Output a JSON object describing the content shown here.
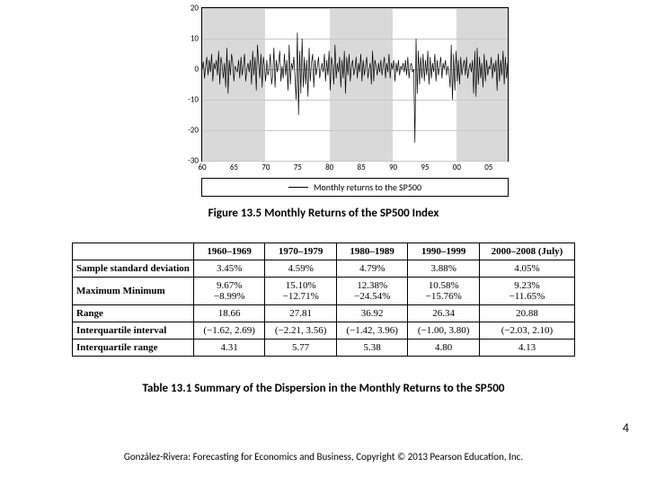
{
  "chart": {
    "type": "line",
    "ylim": [
      -30,
      20
    ],
    "xlim": [
      60,
      108
    ],
    "yticks": [
      -30,
      -20,
      -10,
      0,
      10,
      20
    ],
    "xticks_pos": [
      60,
      65,
      70,
      75,
      80,
      85,
      90,
      95,
      100,
      105
    ],
    "xticks_labels": [
      "60",
      "65",
      "70",
      "75",
      "80",
      "85",
      "90",
      "95",
      "00",
      "05"
    ],
    "shaded_bands": [
      [
        60,
        69.9
      ],
      [
        80,
        89.9
      ],
      [
        100,
        108
      ]
    ],
    "grid_color": "#c8c8c8",
    "band_color": "#d9d9d9",
    "line_color": "#000000",
    "line_width": 0.7,
    "series": [
      0,
      2.5,
      -3,
      1,
      4,
      -2,
      3,
      -1,
      5,
      -4,
      2,
      0,
      3,
      -2,
      6,
      -5,
      4,
      1.5,
      -3,
      2,
      -6,
      7,
      -8,
      3,
      -2,
      5,
      2,
      -4,
      1,
      0,
      -1,
      3,
      -3,
      4,
      -2,
      1,
      5,
      -4,
      0,
      2,
      -1,
      3,
      -5,
      6,
      -2,
      4,
      -7,
      8,
      2,
      -3,
      5,
      -6,
      4,
      1,
      -4,
      3,
      -2,
      0,
      5,
      -5,
      -2,
      7,
      -6,
      3,
      -1,
      2,
      6,
      -4,
      1,
      -3,
      5,
      -2,
      3,
      -7,
      8,
      -5,
      2,
      0,
      4,
      -3,
      -10,
      12,
      -15,
      6,
      -8,
      10,
      -6,
      4,
      -5,
      3,
      -9,
      7,
      -4,
      2,
      5,
      -6,
      3,
      -2,
      1,
      4,
      -3,
      0,
      2,
      -1,
      5,
      -4,
      3,
      -2,
      6,
      -7,
      4,
      1,
      -5,
      8,
      -3,
      2,
      -1,
      4,
      -6,
      3,
      -3,
      6,
      -8,
      4,
      -2,
      5,
      -4,
      1,
      3,
      -2,
      0,
      4,
      -3,
      2,
      -1,
      5,
      -4,
      3,
      -2,
      1,
      4,
      -3,
      0,
      2,
      -5,
      6,
      -4,
      3,
      1,
      -2,
      2,
      -1,
      3,
      -2,
      1,
      4,
      -3,
      2,
      -1,
      5,
      -3,
      2,
      0,
      3,
      -4,
      2,
      -1,
      3,
      -2,
      1,
      0,
      2,
      -1,
      3,
      -2,
      4,
      -3,
      1,
      2,
      -1,
      0,
      -24,
      10,
      -8,
      6,
      -5,
      4,
      -3,
      5,
      -4,
      3,
      -2,
      6,
      -5,
      4,
      -3,
      2,
      -1,
      5,
      -4,
      3,
      -2,
      1,
      4,
      -3,
      2,
      0,
      3,
      -2,
      1,
      -1,
      -6,
      8,
      -10,
      5,
      -7,
      6,
      -4,
      3,
      -5,
      4,
      -2,
      1,
      3,
      -2,
      4,
      -3,
      0,
      2,
      -1,
      3,
      -8,
      6,
      -9,
      7,
      -5,
      4,
      -3,
      2,
      -6,
      5,
      -4,
      3,
      -2,
      1,
      0,
      4,
      -3,
      2,
      -1,
      3,
      -7,
      5,
      -4,
      3,
      -2,
      6,
      -5,
      4,
      -3,
      2
    ],
    "legend_label": "Monthly returns to the SP500"
  },
  "figure_caption": "Figure 13.5  Monthly Returns of the SP500 Index",
  "table": {
    "columns": [
      "",
      "1960–1969",
      "1970–1979",
      "1980–1989",
      "1990–1999",
      "2000–2008 (July)"
    ],
    "rows": [
      {
        "head": "Sample standard deviation",
        "cells": [
          "3.45%",
          "4.59%",
          "4.79%",
          "3.88%",
          "4.05%"
        ]
      },
      {
        "head": "Maximum Minimum",
        "dual": true,
        "cells": [
          [
            "9.67%",
            "−8.99%"
          ],
          [
            "15.10%",
            "−12.71%"
          ],
          [
            "12.38%",
            "−24.54%"
          ],
          [
            "10.58%",
            "−15.76%"
          ],
          [
            "9.23%",
            "−11.65%"
          ]
        ]
      },
      {
        "head": "Range",
        "cells": [
          "18.66",
          "27.81",
          "36.92",
          "26.34",
          "20.88"
        ]
      },
      {
        "head": "Interquartile interval",
        "cells": [
          "(−1.62, 2.69)",
          "(−2.21, 3.56)",
          "(−1.42, 3.96)",
          "(−1.00, 3.80)",
          "(−2.03, 2.10)"
        ]
      },
      {
        "head": "Interquartile range",
        "cells": [
          "4.31",
          "5.77",
          "5.38",
          "4.80",
          "4.13"
        ]
      }
    ]
  },
  "table_caption": "Table 13.1  Summary of the Dispersion in the Monthly Returns to the SP500",
  "page_number": "4",
  "footer": "González-Rivera: Forecasting for Economics and Business, Copyright © 2013 Pearson Education, Inc."
}
